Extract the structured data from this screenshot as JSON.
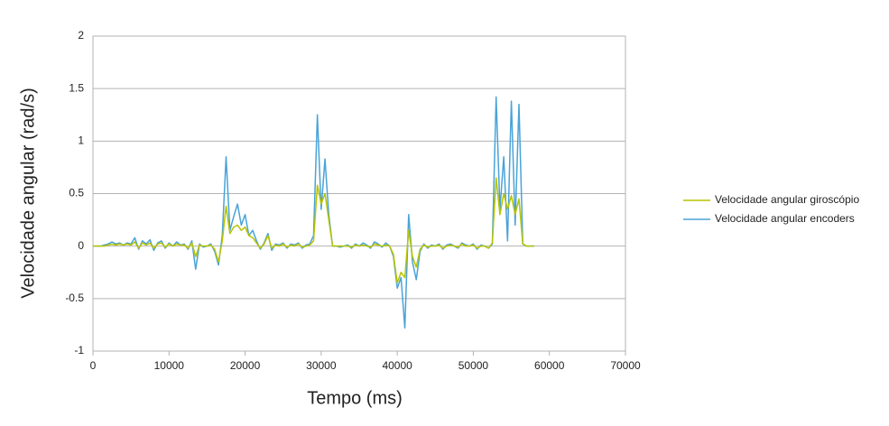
{
  "chart_data": {
    "type": "line",
    "x_label": "Tempo (ms)",
    "y_label": "Velocidade angular (rad/s)",
    "x": [
      0,
      500,
      1000,
      1500,
      2000,
      2500,
      3000,
      3500,
      4000,
      4500,
      5000,
      5500,
      6000,
      6500,
      7000,
      7500,
      8000,
      8500,
      9000,
      9500,
      10000,
      10500,
      11000,
      11500,
      12000,
      12500,
      13000,
      13500,
      14000,
      14500,
      15000,
      15500,
      16000,
      16500,
      17000,
      17500,
      18000,
      18500,
      19000,
      19500,
      20000,
      20500,
      21000,
      21500,
      22000,
      22500,
      23000,
      23500,
      24000,
      24500,
      25000,
      25500,
      26000,
      26500,
      27000,
      27500,
      28000,
      28500,
      29000,
      29500,
      30000,
      30500,
      31000,
      31500,
      32000,
      32500,
      33000,
      33500,
      34000,
      34500,
      35000,
      35500,
      36000,
      36500,
      37000,
      37500,
      38000,
      38500,
      39000,
      39500,
      40000,
      40500,
      41000,
      41500,
      42000,
      42500,
      43000,
      43500,
      44000,
      44500,
      45000,
      45500,
      46000,
      46500,
      47000,
      47500,
      48000,
      48500,
      49000,
      49500,
      50000,
      50500,
      51000,
      51500,
      52000,
      52500,
      53000,
      53500,
      54000,
      54500,
      55000,
      55500,
      56000,
      56500,
      57000,
      57500,
      58000
    ],
    "series": [
      {
        "name": "Velocidade angular giroscópio",
        "color": "#b7c400",
        "values": [
          0,
          0,
          0,
          0,
          0.01,
          0.02,
          0.01,
          0.02,
          0.01,
          0.02,
          0.01,
          0.04,
          -0.02,
          0.03,
          0.01,
          0.03,
          -0.02,
          0.02,
          0.03,
          -0.01,
          0.02,
          0.0,
          0.02,
          0.01,
          0.01,
          -0.02,
          0.03,
          -0.1,
          0.01,
          0.0,
          0.0,
          0.01,
          -0.03,
          -0.15,
          0.05,
          0.38,
          0.12,
          0.18,
          0.2,
          0.15,
          0.18,
          0.1,
          0.08,
          0.03,
          -0.02,
          0.02,
          0.1,
          -0.02,
          0.01,
          0.0,
          0.02,
          -0.01,
          0.01,
          0.0,
          0.02,
          -0.01,
          0.0,
          0.01,
          0.05,
          0.58,
          0.4,
          0.5,
          0.25,
          0.0,
          0.0,
          0.0,
          0.0,
          0.0,
          -0.01,
          0.01,
          0.0,
          0.01,
          0.0,
          -0.01,
          0.02,
          0.01,
          0.0,
          0.01,
          0.0,
          -0.08,
          -0.35,
          -0.25,
          -0.3,
          0.15,
          -0.1,
          -0.2,
          -0.03,
          0.01,
          -0.01,
          0.0,
          0.0,
          0.01,
          -0.02,
          0.0,
          0.01,
          0.0,
          -0.01,
          0.02,
          0.0,
          0.0,
          0.01,
          -0.02,
          0.0,
          0.0,
          -0.02,
          0.03,
          0.65,
          0.3,
          0.5,
          0.35,
          0.48,
          0.3,
          0.45,
          0.02,
          0.0,
          0.0,
          0.0
        ]
      },
      {
        "name": "Velocidade angular encoders",
        "color": "#4aa3d8",
        "values": [
          0,
          0,
          0,
          0.01,
          0.02,
          0.04,
          0.02,
          0.03,
          0.01,
          0.03,
          0.02,
          0.08,
          -0.03,
          0.05,
          0.02,
          0.06,
          -0.04,
          0.03,
          0.05,
          -0.02,
          0.03,
          0.0,
          0.04,
          0.01,
          0.02,
          -0.03,
          0.05,
          -0.22,
          0.02,
          -0.01,
          0.0,
          0.02,
          -0.05,
          -0.18,
          0.1,
          0.85,
          0.15,
          0.28,
          0.4,
          0.2,
          0.3,
          0.1,
          0.15,
          0.05,
          -0.03,
          0.03,
          0.12,
          -0.04,
          0.02,
          0.01,
          0.03,
          -0.02,
          0.02,
          0.01,
          0.03,
          -0.02,
          0.01,
          0.02,
          0.1,
          1.25,
          0.35,
          0.83,
          0.3,
          0.0,
          0.0,
          -0.01,
          0.0,
          0.01,
          -0.02,
          0.02,
          0.0,
          0.03,
          0.01,
          -0.02,
          0.04,
          0.02,
          -0.01,
          0.03,
          0.0,
          -0.1,
          -0.4,
          -0.3,
          -0.78,
          0.3,
          -0.15,
          -0.32,
          -0.05,
          0.02,
          -0.02,
          0.01,
          0.0,
          0.02,
          -0.03,
          0.01,
          0.02,
          0.0,
          -0.02,
          0.03,
          0.01,
          0.0,
          0.02,
          -0.03,
          0.01,
          0.0,
          -0.02,
          0.02,
          1.42,
          0.35,
          0.85,
          0.05,
          1.38,
          0.2,
          1.35,
          0.02,
          0.0,
          0.0,
          0.0
        ]
      }
    ],
    "xlim": [
      0,
      70000
    ],
    "xticks": [
      0,
      10000,
      20000,
      30000,
      40000,
      50000,
      60000,
      70000
    ],
    "ylim": [
      -1,
      2
    ],
    "yticks": [
      -1,
      -0.5,
      0,
      0.5,
      1,
      1.5,
      2
    ],
    "grid": true,
    "legend": "right"
  }
}
